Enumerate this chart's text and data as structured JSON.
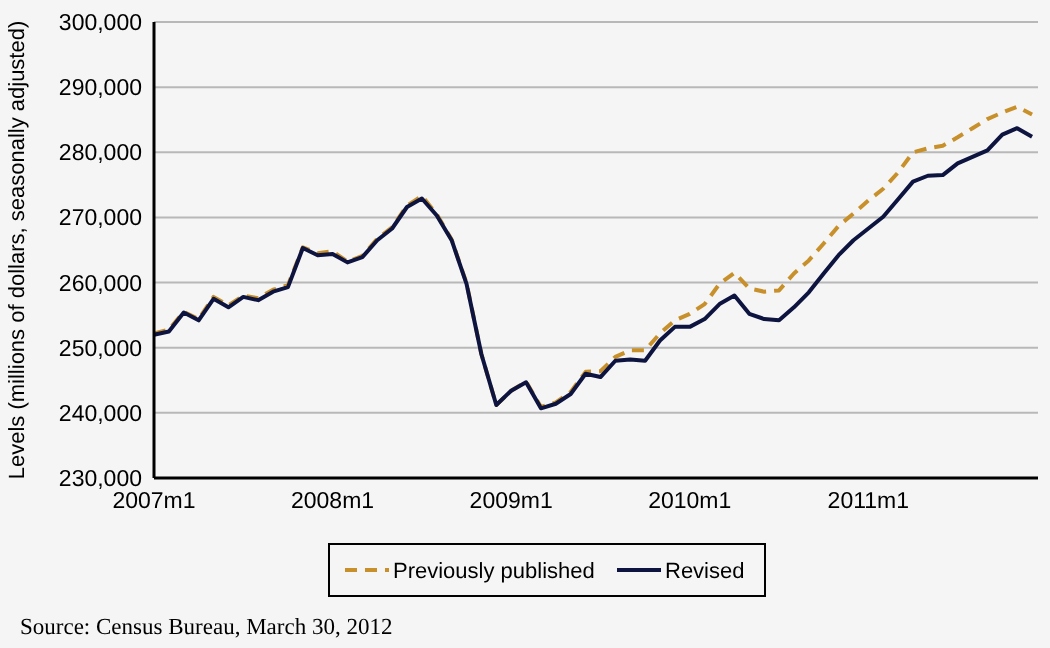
{
  "chart_data": {
    "type": "line",
    "ylabel": "Levels (millions of dollars, seasonally adjusted)",
    "categories": [
      "2007m1",
      null,
      null,
      null,
      null,
      null,
      null,
      null,
      null,
      null,
      null,
      null,
      "2008m1",
      null,
      null,
      null,
      null,
      null,
      null,
      null,
      null,
      null,
      null,
      null,
      "2009m1",
      null,
      null,
      null,
      null,
      null,
      null,
      null,
      null,
      null,
      null,
      null,
      "2010m1",
      null,
      null,
      null,
      null,
      null,
      null,
      null,
      null,
      null,
      null,
      null,
      "2011m1",
      null,
      null,
      null,
      null,
      null,
      null,
      null,
      null,
      null,
      null,
      null
    ],
    "ylim": [
      230000,
      300000
    ],
    "yticks": [
      {
        "value": 230000,
        "label": "230,000"
      },
      {
        "value": 240000,
        "label": "240,000"
      },
      {
        "value": 250000,
        "label": "250,000"
      },
      {
        "value": 260000,
        "label": "260,000"
      },
      {
        "value": 270000,
        "label": "270,000"
      },
      {
        "value": 280000,
        "label": "280,000"
      },
      {
        "value": 290000,
        "label": "290,000"
      },
      {
        "value": 300000,
        "label": "300,000"
      }
    ],
    "grid": "y",
    "legend": "bottom",
    "series": [
      {
        "name": "Previously published",
        "color": "#c8902a",
        "line_style": "dashed",
        "values": [
          252200,
          252800,
          255500,
          254400,
          257800,
          256500,
          258000,
          257600,
          258900,
          259600,
          265400,
          264500,
          264800,
          263200,
          264100,
          266700,
          268500,
          271800,
          273300,
          270500,
          266600,
          259900,
          249000,
          241200,
          243400,
          244800,
          240900,
          241600,
          243200,
          246300,
          246400,
          248600,
          249600,
          249600,
          252200,
          254200,
          255200,
          256700,
          259800,
          261500,
          259100,
          258600,
          258800,
          261400,
          263400,
          266000,
          268700,
          270600,
          272600,
          274400,
          276900,
          280000,
          280600,
          281000,
          282300,
          283700,
          285100,
          286100,
          287000,
          285800
        ]
      },
      {
        "name": "Revised",
        "color": "#0d1440",
        "line_style": "solid",
        "values": [
          252000,
          252500,
          255400,
          254200,
          257500,
          256200,
          257800,
          257300,
          258600,
          259300,
          265300,
          264200,
          264400,
          263100,
          263900,
          266500,
          268300,
          271600,
          272900,
          270300,
          266500,
          259800,
          249000,
          241200,
          243400,
          244700,
          240700,
          241400,
          242900,
          246000,
          245500,
          248000,
          248200,
          248000,
          251100,
          253200,
          253200,
          254400,
          256700,
          258000,
          255200,
          254400,
          254200,
          256200,
          258500,
          261400,
          264200,
          266500,
          268300,
          270100,
          272800,
          275500,
          276400,
          276500,
          278300,
          279300,
          280300,
          282700,
          283700,
          282400
        ]
      }
    ],
    "annotations": [
      "Source: Census Bureau, March 30, 2012"
    ]
  }
}
